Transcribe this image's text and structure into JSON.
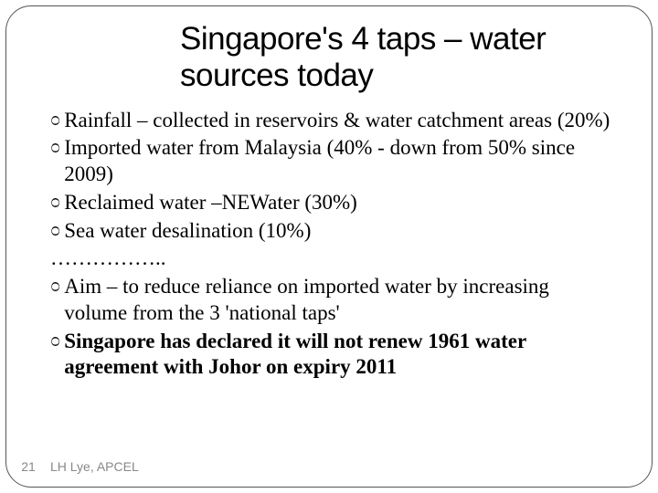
{
  "slide": {
    "title": "Singapore's 4 taps – water sources today",
    "bullets": [
      {
        "type": "bullet",
        "text": "Rainfall – collected in reservoirs & water catchment areas (20%)",
        "bold": false
      },
      {
        "type": "bullet",
        "text": "Imported water from Malaysia (40% - down from 50% since 2009)",
        "bold": false
      },
      {
        "type": "bullet",
        "text": "Reclaimed water –NEWater (30%)",
        "bold": false
      },
      {
        "type": "bullet",
        "text": "Sea water desalination (10%)",
        "bold": false
      },
      {
        "type": "plain",
        "text": "……………..",
        "bold": false
      },
      {
        "type": "bullet",
        "text": "Aim – to reduce reliance on imported water by increasing volume from the  3 'national taps'",
        "bold": false
      },
      {
        "type": "bullet",
        "text": "Singapore  has  declared it will not renew 1961 water agreement with Johor on expiry 2011",
        "bold": true
      }
    ],
    "bullet_glyph": "೦",
    "page_number": "21",
    "footer": "LH Lye, APCEL"
  },
  "style": {
    "title_fontsize": 35,
    "body_fontsize": 23,
    "footer_fontsize": 14,
    "title_color": "#000000",
    "body_color": "#000000",
    "footer_color": "#888888",
    "frame_border_color": "#555555",
    "frame_border_radius": 28,
    "background_color": "#ffffff"
  }
}
